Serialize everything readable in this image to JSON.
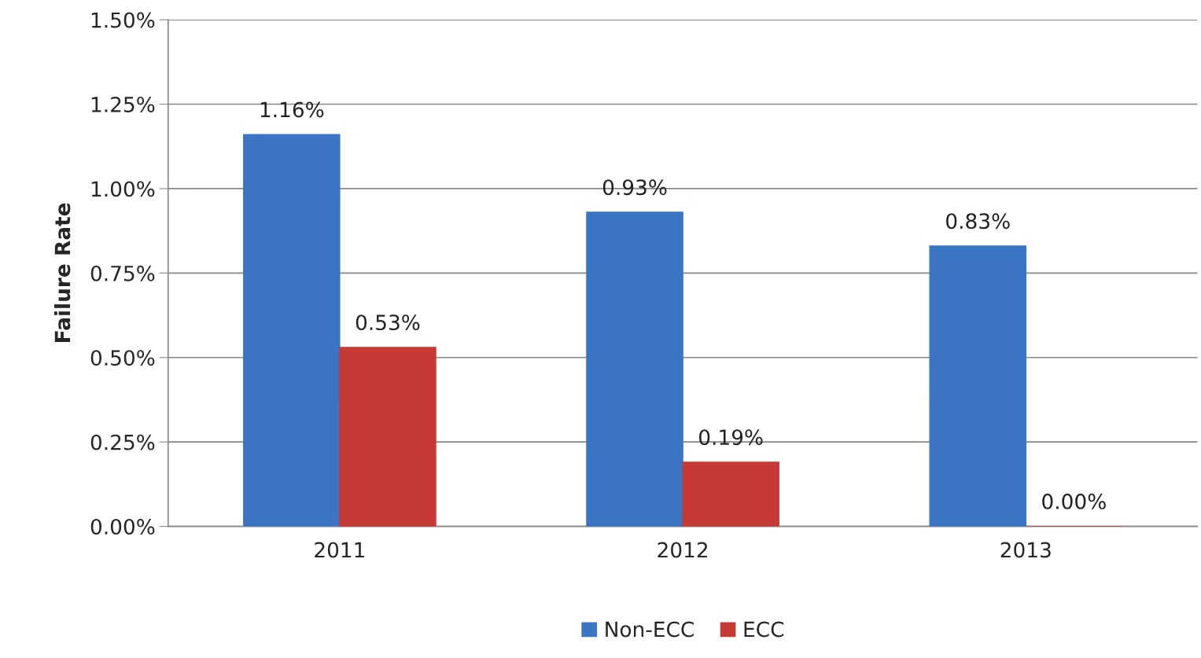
{
  "chart_data": {
    "type": "bar",
    "ylabel": "Failure Rate",
    "categories": [
      "2011",
      "2012",
      "2013"
    ],
    "series": [
      {
        "name": "Non-ECC",
        "color": "#3a74c2",
        "values": [
          1.16,
          0.93,
          0.83
        ],
        "value_labels": [
          "1.16%",
          "0.93%",
          "0.83%"
        ]
      },
      {
        "name": "ECC",
        "color": "#c63a36",
        "values": [
          0.53,
          0.19,
          0.0
        ],
        "value_labels": [
          "0.53%",
          "0.19%",
          "0.00%"
        ]
      }
    ],
    "ylim": [
      0,
      1.5
    ],
    "yticks": [
      {
        "value": 0,
        "label": "0.00%"
      },
      {
        "value": 0.25,
        "label": "0.25%"
      },
      {
        "value": 0.5,
        "label": "0.50%"
      },
      {
        "value": 0.75,
        "label": "0.75%"
      },
      {
        "value": 1.0,
        "label": "1.00%"
      },
      {
        "value": 1.25,
        "label": "1.25%"
      },
      {
        "value": 1.5,
        "label": "1.50%"
      }
    ],
    "grid": "y",
    "legend": "bottom"
  }
}
